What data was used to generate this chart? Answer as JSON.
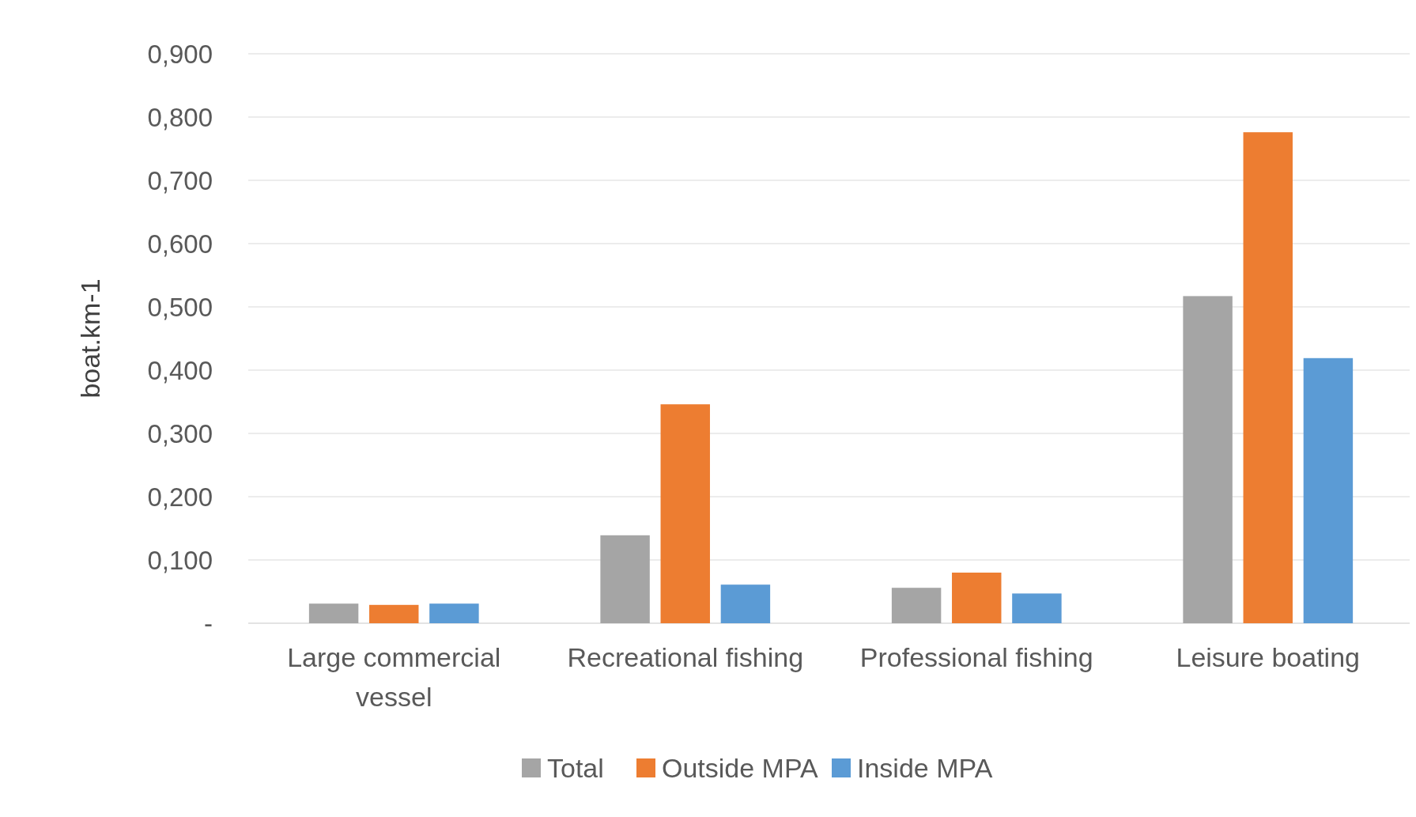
{
  "chart_data": {
    "type": "bar",
    "ylabel": "boat.km-1",
    "categories": [
      "Large commercial vessel",
      "Recreational fishing",
      "Professional fishing",
      "Leisure boating"
    ],
    "series": [
      {
        "name": "Total",
        "color": "#a5a5a5",
        "values": [
          0.031,
          0.139,
          0.056,
          0.517
        ]
      },
      {
        "name": "Outside MPA",
        "color": "#ed7d31",
        "values": [
          0.029,
          0.346,
          0.08,
          0.776
        ]
      },
      {
        "name": "Inside MPA",
        "color": "#5b9bd5",
        "values": [
          0.031,
          0.061,
          0.047,
          0.419
        ]
      }
    ],
    "ylim": [
      0,
      0.9
    ],
    "yticks": [
      {
        "value": 0,
        "label": "-"
      },
      {
        "value": 0.1,
        "label": "0,100"
      },
      {
        "value": 0.2,
        "label": "0,200"
      },
      {
        "value": 0.3,
        "label": "0,300"
      },
      {
        "value": 0.4,
        "label": "0,400"
      },
      {
        "value": 0.5,
        "label": "0,500"
      },
      {
        "value": 0.6,
        "label": "0,600"
      },
      {
        "value": 0.7,
        "label": "0,700"
      },
      {
        "value": 0.8,
        "label": "0,800"
      },
      {
        "value": 0.9,
        "label": "0,900"
      }
    ],
    "grid": "y",
    "legend": "bottom"
  }
}
